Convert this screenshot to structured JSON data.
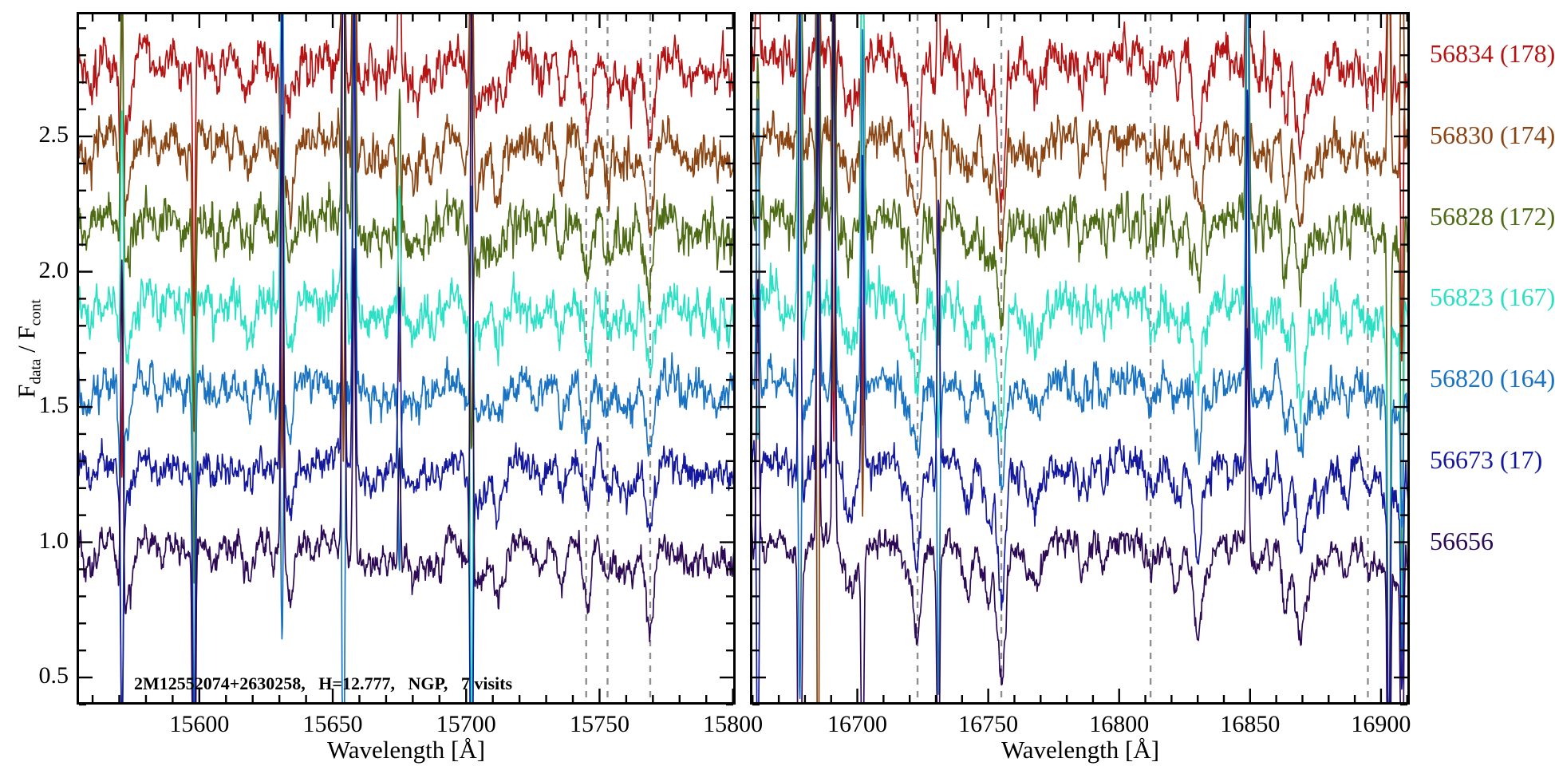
{
  "figure": {
    "background": "#ffffff",
    "axis_color": "#000000",
    "dashed_line_color": "#8f8f8f",
    "ylabel": {
      "f": "F",
      "sub_data": "data",
      "sep": " / ",
      "sub_cont": "cont"
    }
  },
  "chart_data": {
    "type": "line",
    "title": "",
    "xlabel": "Wavelength [Å]",
    "ylabel": "F_data / F_cont",
    "annotation": "2M12552074+2630258,   H=12.777,   NGP,   7 visits",
    "ylim": [
      0.4,
      2.96
    ],
    "yticks": [
      {
        "v": 0.5,
        "label": "0.5"
      },
      {
        "v": 1.0,
        "label": "1.0"
      },
      {
        "v": 1.5,
        "label": "1.5"
      },
      {
        "v": 2.0,
        "label": "2.0"
      },
      {
        "v": 2.5,
        "label": "2.5"
      }
    ],
    "y_minor_step": 0.1,
    "x_minor_step": 10,
    "grid": false,
    "legend_position": "right-outside",
    "panels": [
      {
        "xlim": [
          15554,
          15801
        ],
        "xticks": [
          {
            "v": 15600,
            "label": "15600"
          },
          {
            "v": 15650,
            "label": "15650"
          },
          {
            "v": 15700,
            "label": "15700"
          },
          {
            "v": 15750,
            "label": "15750"
          },
          {
            "v": 15800,
            "label": "15800"
          }
        ],
        "telluric_dashed_lines": [
          {
            "wavelength": 15745,
            "depth": 0.12
          },
          {
            "wavelength": 15753,
            "depth": 0.14
          },
          {
            "wavelength": 15769,
            "depth": 0.21
          }
        ],
        "sky_residual_spikes": [
          {
            "wavelength": 15571,
            "strength": 1.3
          },
          {
            "wavelength": 15598,
            "strength": 1.9
          },
          {
            "wavelength": 15631,
            "strength": 1.6
          },
          {
            "wavelength": 15654,
            "strength": 2.5
          },
          {
            "wavelength": 15658,
            "strength": 1.5
          },
          {
            "wavelength": 15675,
            "strength": 0.8
          },
          {
            "wavelength": 15702,
            "strength": 1.9
          }
        ]
      },
      {
        "xlim": [
          16659,
          16911
        ],
        "xticks": [
          {
            "v": 16700,
            "label": "16700"
          },
          {
            "v": 16750,
            "label": "16750"
          },
          {
            "v": 16800,
            "label": "16800"
          },
          {
            "v": 16850,
            "label": "16850"
          },
          {
            "v": 16900,
            "label": "16900"
          }
        ],
        "telluric_dashed_lines": [
          {
            "wavelength": 16723,
            "depth": 0.2
          },
          {
            "wavelength": 16755,
            "depth": 0.28
          },
          {
            "wavelength": 16812,
            "depth": 0.07
          },
          {
            "wavelength": 16895,
            "depth": 0.05
          }
        ],
        "sky_residual_spikes": [
          {
            "wavelength": 16662,
            "strength": 1.2
          },
          {
            "wavelength": 16678,
            "strength": 2.7
          },
          {
            "wavelength": 16685,
            "strength": 2.7
          },
          {
            "wavelength": 16691,
            "strength": 2.3
          },
          {
            "wavelength": 16702,
            "strength": 1.7
          },
          {
            "wavelength": 16731,
            "strength": 0.9
          },
          {
            "wavelength": 16849,
            "strength": 2.1
          },
          {
            "wavelength": 16903,
            "strength": 2.7
          },
          {
            "wavelength": 16908,
            "strength": 1.4
          }
        ]
      }
    ],
    "series": [
      {
        "label": "56834 (178)",
        "color": "#b41414",
        "offset": 2.8,
        "noise_rms": 0.034
      },
      {
        "label": "56830 (174)",
        "color": "#8b4513",
        "offset": 2.5,
        "noise_rms": 0.032
      },
      {
        "label": "56828 (172)",
        "color": "#4e6b15",
        "offset": 2.2,
        "noise_rms": 0.036
      },
      {
        "label": "56823 (167)",
        "color": "#2be0c4",
        "offset": 1.9,
        "noise_rms": 0.034
      },
      {
        "label": "56820 (164)",
        "color": "#1a73c2",
        "offset": 1.6,
        "noise_rms": 0.03
      },
      {
        "label": "56673 (17)",
        "color": "#14189c",
        "offset": 1.3,
        "noise_rms": 0.027
      },
      {
        "label": "56656",
        "color": "#2d0a55",
        "offset": 1.0,
        "noise_rms": 0.024
      }
    ]
  }
}
